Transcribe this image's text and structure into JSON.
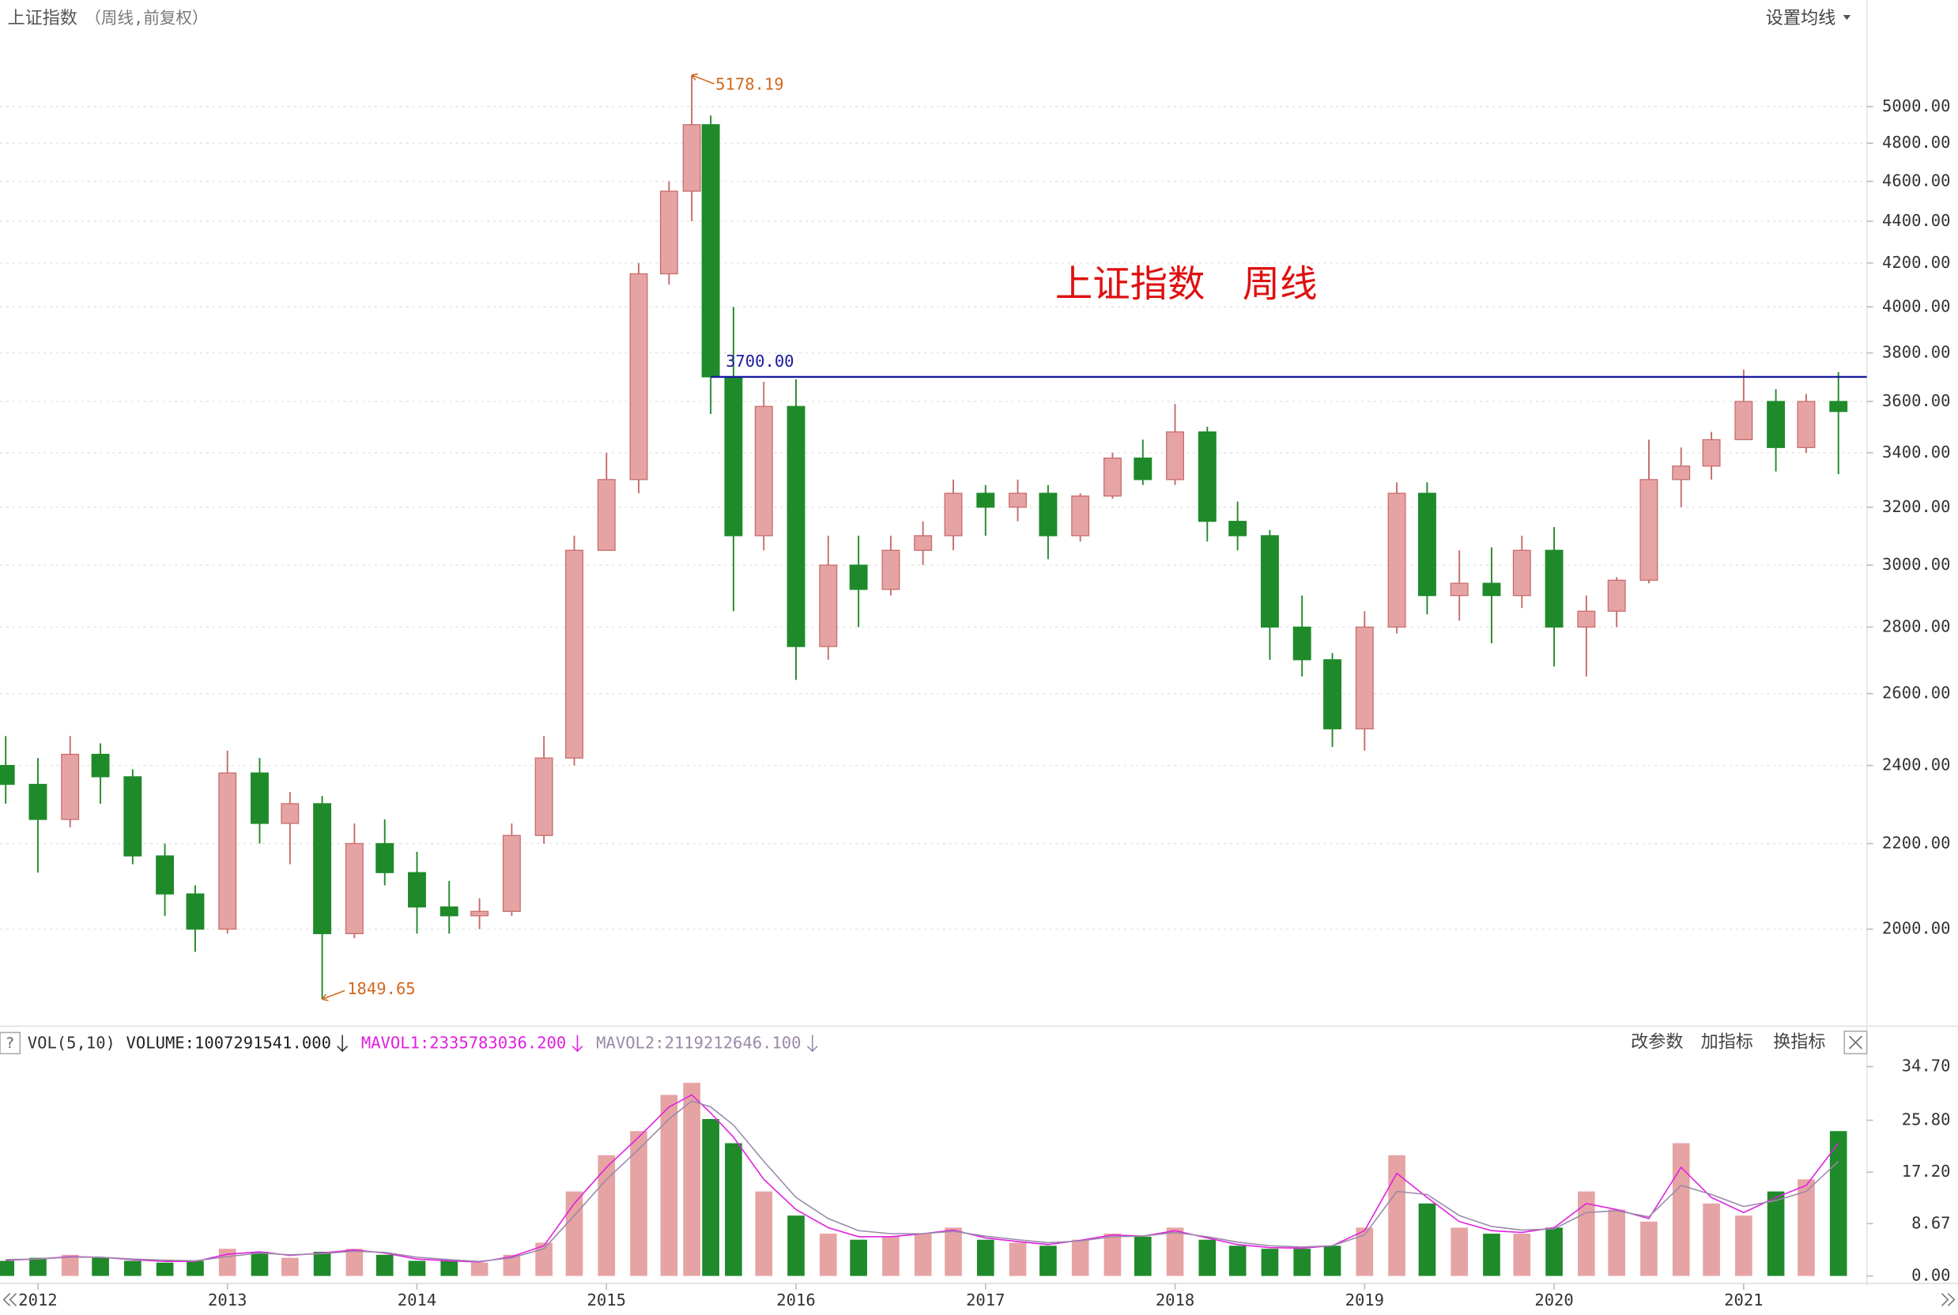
{
  "chart_data": [
    {
      "type": "candlestick",
      "title": "上证指数",
      "subtitle": "（周线,前复权）",
      "menu": "设置均线",
      "annotation": "上证指数　周线",
      "x": [
        2011.83,
        2012,
        2012.17,
        2012.33,
        2012.5,
        2012.67,
        2012.83,
        2013,
        2013.17,
        2013.33,
        2013.5,
        2013.67,
        2013.83,
        2014,
        2014.17,
        2014.33,
        2014.5,
        2014.67,
        2014.83,
        2015,
        2015.17,
        2015.33,
        2015.45,
        2015.55,
        2015.67,
        2015.83,
        2016,
        2016.17,
        2016.33,
        2016.5,
        2016.67,
        2016.83,
        2017,
        2017.17,
        2017.33,
        2017.5,
        2017.67,
        2017.83,
        2018,
        2018.17,
        2018.33,
        2018.5,
        2018.67,
        2018.83,
        2019,
        2019.17,
        2019.33,
        2019.5,
        2019.67,
        2019.83,
        2020,
        2020.17,
        2020.33,
        2020.5,
        2020.67,
        2020.83,
        2021,
        2021.17,
        2021.33,
        2021.5
      ],
      "open": [
        2400,
        2350,
        2260,
        2430,
        2370,
        2170,
        2080,
        2000,
        2380,
        2250,
        2300,
        1990,
        2200,
        2130,
        2050,
        2030,
        2040,
        2220,
        2420,
        3050,
        3300,
        4150,
        4550,
        4900,
        3700,
        3100,
        3580,
        2740,
        3000,
        2920,
        3050,
        3100,
        3250,
        3200,
        3250,
        3100,
        3240,
        3380,
        3300,
        3480,
        3150,
        3100,
        2800,
        2700,
        2500,
        2800,
        3250,
        2900,
        2940,
        2900,
        3050,
        2800,
        2850,
        2950,
        3300,
        3350,
        3450,
        3600,
        3420,
        3600
      ],
      "high": [
        2480,
        2420,
        2480,
        2460,
        2390,
        2200,
        2100,
        2440,
        2420,
        2330,
        2320,
        2250,
        2260,
        2180,
        2110,
        2070,
        2250,
        2480,
        3100,
        3400,
        4200,
        4600,
        5178.19,
        4950,
        4000,
        3680,
        3690,
        3100,
        3100,
        3100,
        3150,
        3300,
        3280,
        3300,
        3280,
        3250,
        3400,
        3450,
        3590,
        3500,
        3220,
        3120,
        2900,
        2720,
        2850,
        3290,
        3290,
        3050,
        3060,
        3100,
        3130,
        2900,
        2960,
        3450,
        3420,
        3480,
        3730,
        3650,
        3630,
        3720
      ],
      "low": [
        2300,
        2130,
        2240,
        2300,
        2150,
        2030,
        1950,
        1990,
        2200,
        2150,
        1849.65,
        1980,
        2100,
        1990,
        1990,
        2000,
        2030,
        2200,
        2400,
        3050,
        3250,
        4100,
        4400,
        3550,
        2850,
        3050,
        2640,
        2700,
        2800,
        2900,
        3000,
        3050,
        3100,
        3150,
        3020,
        3080,
        3230,
        3280,
        3280,
        3080,
        3050,
        2700,
        2650,
        2450,
        2440,
        2780,
        2840,
        2820,
        2750,
        2860,
        2680,
        2650,
        2800,
        2940,
        3200,
        3300,
        3450,
        3330,
        3400,
        3320
      ],
      "close": [
        2350,
        2260,
        2430,
        2370,
        2170,
        2080,
        2000,
        2380,
        2250,
        2300,
        1990,
        2200,
        2130,
        2050,
        2030,
        2040,
        2220,
        2420,
        3050,
        3300,
        4150,
        4550,
        4900,
        3700,
        3100,
        3580,
        2740,
        3000,
        2920,
        3050,
        3100,
        3250,
        3200,
        3250,
        3100,
        3240,
        3380,
        3300,
        3480,
        3150,
        3100,
        2800,
        2700,
        2500,
        2800,
        3250,
        2900,
        2940,
        2900,
        3050,
        2800,
        2850,
        2950,
        3300,
        3350,
        3450,
        3600,
        3420,
        3600,
        3560
      ],
      "up_color": "#e6a3a3",
      "down_color": "#1f8a2a",
      "xlim": [
        2011.8,
        2021.65
      ],
      "xticks": [
        2012,
        2013,
        2014,
        2015,
        2016,
        2017,
        2018,
        2019,
        2020,
        2021
      ],
      "ylim": [
        1800,
        5400
      ],
      "log": true,
      "grid": true,
      "yticks": [
        {
          "value": 2000,
          "label": "2000.00"
        },
        {
          "value": 2200,
          "label": "2200.00"
        },
        {
          "value": 2400,
          "label": "2400.00"
        },
        {
          "value": 2600,
          "label": "2600.00"
        },
        {
          "value": 2800,
          "label": "2800.00"
        },
        {
          "value": 3000,
          "label": "3000.00"
        },
        {
          "value": 3200,
          "label": "3200.00"
        },
        {
          "value": 3400,
          "label": "3400.00"
        },
        {
          "value": 3600,
          "label": "3600.00"
        },
        {
          "value": 3800,
          "label": "3800.00"
        },
        {
          "value": 4000,
          "label": "4000.00"
        },
        {
          "value": 4200,
          "label": "4200.00"
        },
        {
          "value": 4400,
          "label": "4400.00"
        },
        {
          "value": 4600,
          "label": "4600.00"
        },
        {
          "value": 4800,
          "label": "4800.00"
        },
        {
          "value": 5000,
          "label": "5000.00"
        }
      ],
      "hline": {
        "value": 3700,
        "label": "3700.00",
        "x_start": 2015.55,
        "color": "#1a1aa0"
      },
      "max_label": {
        "value": 5178.19,
        "label": "5178.19"
      },
      "min_label": {
        "value": 1849.65,
        "label": "1849.65"
      },
      "label_color": "#d2691e",
      "annotation_color": "#e01010"
    },
    {
      "type": "bar",
      "title": "VOL(5,10)",
      "buttons": [
        "改参数",
        "加指标",
        "换指标"
      ],
      "ylim": [
        0,
        36
      ],
      "yticks": [
        {
          "value": 0,
          "label": "0.00"
        },
        {
          "value": 8.67,
          "label": "8.67"
        },
        {
          "value": 17.2,
          "label": "17.20"
        },
        {
          "value": 25.8,
          "label": "25.80"
        },
        {
          "value": 34.7,
          "label": "34.70"
        }
      ],
      "series": [
        {
          "label": "VOLUME:1007291541.000",
          "color": "#222222",
          "values": [
            2.5,
            3,
            3.5,
            3,
            2.5,
            2.2,
            2.5,
            4.5,
            4,
            3,
            4,
            4.5,
            3.5,
            2.5,
            2.5,
            2.2,
            3.5,
            5.5,
            14,
            20,
            24,
            30,
            32,
            26,
            22,
            14,
            10,
            7,
            6,
            6.5,
            7,
            8,
            6,
            5.5,
            5,
            6,
            7,
            6.5,
            8,
            6,
            5,
            4.5,
            4.5,
            5,
            8,
            20,
            12,
            8,
            7,
            7,
            8,
            14,
            11,
            9,
            22,
            12,
            10,
            14,
            16,
            24
          ]
        },
        {
          "label": "MAVOL1:2335783036.200",
          "color": "#e020e0",
          "values": [
            2.6,
            2.8,
            3.2,
            3.1,
            2.7,
            2.4,
            2.4,
            3.6,
            4,
            3.4,
            3.8,
            4.3,
            3.8,
            2.8,
            2.5,
            2.3,
            3.2,
            5,
            12,
            18,
            23,
            28,
            30,
            27,
            23,
            16,
            11,
            8,
            6.5,
            6.5,
            7,
            7.6,
            6.3,
            5.7,
            5.2,
            5.9,
            6.8,
            6.6,
            7.5,
            6.3,
            5.2,
            4.7,
            4.6,
            5,
            7.5,
            17,
            13,
            9,
            7.5,
            7.2,
            8,
            12,
            11,
            9.5,
            18,
            13,
            10.5,
            13,
            15,
            22
          ]
        },
        {
          "label": "MAVOL2:2119212646.100",
          "color": "#9a8aa8",
          "values": [
            2.7,
            2.8,
            3.1,
            3.1,
            2.8,
            2.6,
            2.5,
            3.2,
            3.8,
            3.5,
            3.7,
            4.1,
            3.9,
            3.1,
            2.7,
            2.4,
            3,
            4.5,
            10,
            16,
            21,
            26,
            29,
            28,
            25,
            19,
            13,
            9.5,
            7.5,
            7,
            7,
            7.4,
            6.6,
            6,
            5.5,
            5.8,
            6.5,
            6.6,
            7.2,
            6.5,
            5.6,
            5,
            4.8,
            5,
            6.8,
            14,
            13.5,
            10,
            8.2,
            7.6,
            7.8,
            10.5,
            10.8,
            9.8,
            15,
            13.5,
            11.5,
            12.5,
            14,
            19
          ]
        }
      ]
    }
  ]
}
